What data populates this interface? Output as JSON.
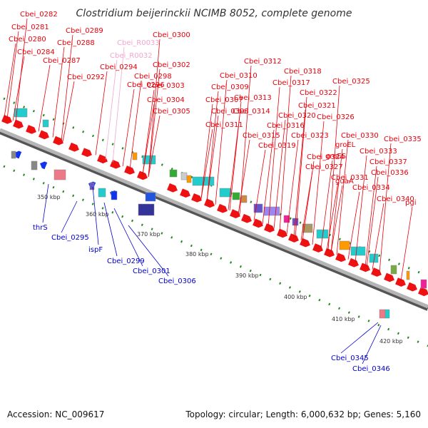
{
  "title": "Clostridium beijerinckii NCIMB 8052, complete genome",
  "footer": {
    "accession": "Accession: NC_009617",
    "summary": "Topology: circular; Length: 6,000,632 bp; Genes: 5,160"
  },
  "colors": {
    "forward_label": "#e8000b",
    "reverse_label": "#0000cc",
    "rna_label": "#f2a6d0",
    "backbone": "#9a9a9a",
    "gene_forward": "#ee1111",
    "gene_reverse": "#1133ee",
    "tick": "#228822"
  },
  "kbp_ticks": [
    {
      "label": "350 kbp",
      "kbp": 350
    },
    {
      "label": "360 kbp",
      "kbp": 360
    },
    {
      "label": "370 kbp",
      "kbp": 370
    },
    {
      "label": "380 kbp",
      "kbp": 380
    },
    {
      "label": "390 kbp",
      "kbp": 390
    },
    {
      "label": "400 kbp",
      "kbp": 400
    },
    {
      "label": "410 kbp",
      "kbp": 410
    },
    {
      "label": "420 kbp",
      "kbp": 420
    }
  ],
  "forward_labels": [
    "Cbei_0282",
    "Cbei_0281",
    "Cbei_0280",
    "Cbei_0284",
    "Cbei_0289",
    "Cbei_0288",
    "Cbei_0287",
    "Cbei_0292",
    "Cbei_R0033",
    "Cbei_R0032",
    "Cbei_0300",
    "Cbei_0294",
    "Cbei_0298",
    "Cbei_0296",
    "Cbei_0302",
    "Cbei_0303",
    "Cbei_0304",
    "Cbei_0305",
    "Cbei_0312",
    "Cbei_0310",
    "Cbei_0309",
    "Cbei_0307",
    "Cbei_0308",
    "Cbei_0313",
    "Cbei_0314",
    "Cbei_0311",
    "Cbei_0318",
    "Cbei_0317",
    "Cbei_0316",
    "Cbei_0315",
    "Cbei_0319",
    "Cbei_0325",
    "Cbei_0322",
    "Cbei_0321",
    "Cbei_0320",
    "Cbei_0326",
    "Cbei_0323",
    "Cbei_0324",
    "Cbei_0327",
    "Cbei_0330",
    "Cbei_0335",
    "groEL",
    "Cbei_0333",
    "groES",
    "Cbei_0337",
    "Cbei_0331",
    "guaA",
    "Cbei_0336",
    "Cbei_0334",
    "pgi",
    "Cbei_0340"
  ],
  "reverse_labels": [
    "thrS",
    "Cbei_0295",
    "ispF",
    "Cbei_0299",
    "Cbei_0301",
    "Cbei_0306",
    "Cbei_0345",
    "Cbei_0346"
  ]
}
